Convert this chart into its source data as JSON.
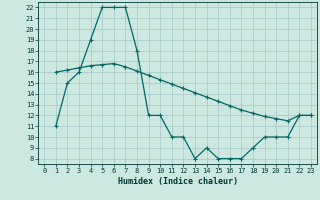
{
  "title": "",
  "xlabel": "Humidex (Indice chaleur)",
  "ylabel": "",
  "bg_color": "#cce8e0",
  "grid_color": "#aacccc",
  "line_color": "#006868",
  "xlim": [
    -0.5,
    23.5
  ],
  "ylim": [
    7.5,
    22.5
  ],
  "xticks": [
    0,
    1,
    2,
    3,
    4,
    5,
    6,
    7,
    8,
    9,
    10,
    11,
    12,
    13,
    14,
    15,
    16,
    17,
    18,
    19,
    20,
    21,
    22,
    23
  ],
  "yticks": [
    8,
    9,
    10,
    11,
    12,
    13,
    14,
    15,
    16,
    17,
    18,
    19,
    20,
    21,
    22
  ],
  "line1_x": [
    1,
    2,
    3,
    4,
    5,
    6,
    7,
    8,
    9,
    10,
    11,
    12,
    13,
    14,
    15,
    16,
    17,
    18,
    19,
    20,
    21,
    22,
    23
  ],
  "line1_y": [
    11,
    15,
    16,
    19,
    22,
    22,
    22,
    18,
    12,
    12,
    10,
    10,
    8,
    9,
    8,
    8,
    8,
    9,
    10,
    10,
    10,
    12,
    12
  ],
  "line2_x": [
    1,
    2,
    3,
    4,
    5,
    6,
    7,
    8,
    9,
    10,
    11,
    12,
    13,
    14,
    15,
    16,
    17,
    18,
    19,
    20,
    21,
    22,
    23
  ],
  "line2_y": [
    16,
    16.2,
    16.4,
    16.6,
    16.7,
    16.8,
    16.5,
    16.1,
    15.7,
    15.3,
    14.9,
    14.5,
    14.1,
    13.7,
    13.3,
    12.9,
    12.5,
    12.2,
    11.9,
    11.7,
    11.5,
    12.0,
    12.0
  ]
}
